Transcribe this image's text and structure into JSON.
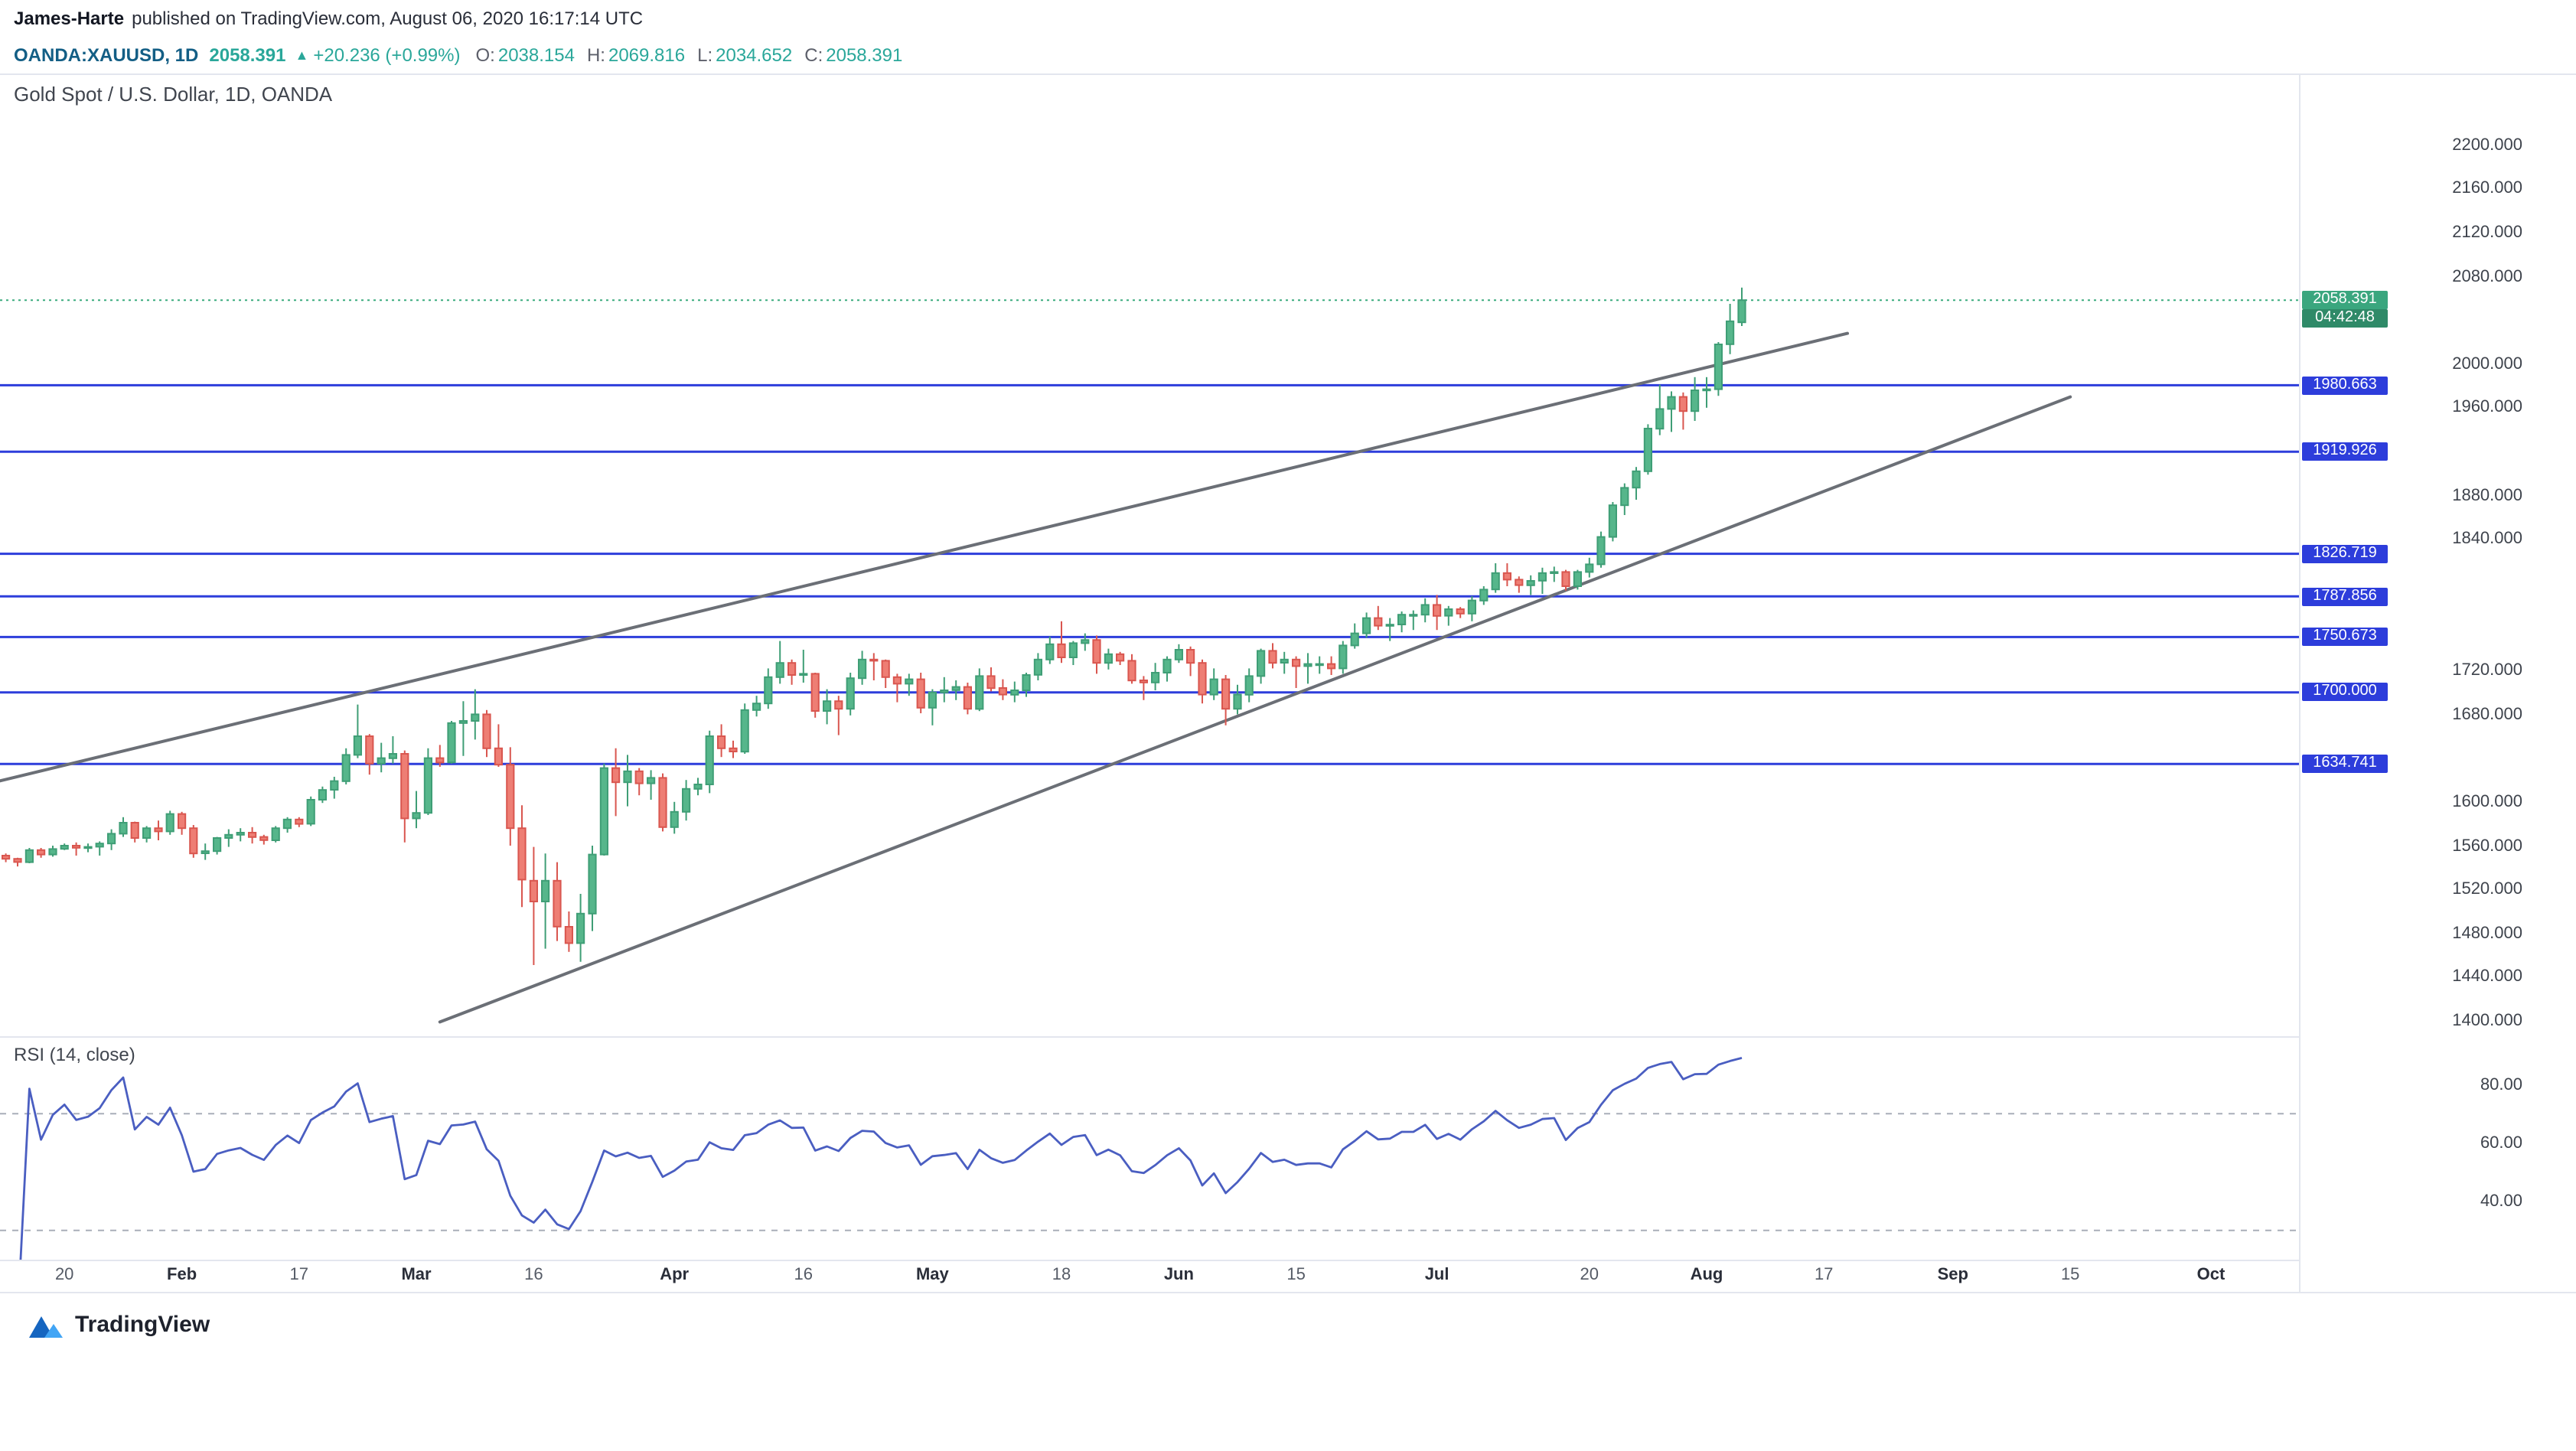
{
  "header": {
    "publisher": "James-Harte",
    "published_text": "published on TradingView.com, August 06, 2020 16:17:14 UTC",
    "symbol": "OANDA:XAUUSD, 1D",
    "last_price": "2058.391",
    "change_icon": "▲",
    "change_text": "+20.236 (+0.99%)",
    "ohlc": [
      {
        "label": "O:",
        "value": "2038.154"
      },
      {
        "label": "H:",
        "value": "2069.816"
      },
      {
        "label": "L:",
        "value": "2034.652"
      },
      {
        "label": "C:",
        "value": "2058.391"
      }
    ]
  },
  "footer": {
    "brand": "TradingView"
  },
  "colors": {
    "up": "#56b68b",
    "up_border": "#3f9e76",
    "down": "#ee7e74",
    "down_border": "#d9564f",
    "sr_line": "#2d3ddb",
    "sr_label_bg": "#2d3ddb",
    "last_line": "#3bab7e",
    "last_label_bg": "#3aa67e",
    "countdown_bg": "#2f8a68",
    "trend": "#6b6f76",
    "rsi_line": "#4a5ec1",
    "rsi_band": "#a9aeb9",
    "header_symbol": "#135e85",
    "header_value": "#2aa79a",
    "ohlc_label": "#5d606b"
  },
  "chart_data": {
    "type": "candlestick",
    "title": "Gold Spot / U.S. Dollar, 1D, OANDA",
    "symbol": "XAUUSD",
    "interval": "1D",
    "price_axis": {
      "min": 1386,
      "max": 2264,
      "tick_min": 1400,
      "tick_max": 2200,
      "tick_step": 40
    },
    "time_axis": {
      "total_slots": 196,
      "labels": [
        {
          "text": "20",
          "slot": 5
        },
        {
          "text": "Feb",
          "slot": 15,
          "month": true
        },
        {
          "text": "17",
          "slot": 25
        },
        {
          "text": "Mar",
          "slot": 35,
          "month": true
        },
        {
          "text": "16",
          "slot": 45
        },
        {
          "text": "Apr",
          "slot": 57,
          "month": true
        },
        {
          "text": "16",
          "slot": 68
        },
        {
          "text": "May",
          "slot": 79,
          "month": true
        },
        {
          "text": "18",
          "slot": 90
        },
        {
          "text": "Jun",
          "slot": 100,
          "month": true
        },
        {
          "text": "15",
          "slot": 110
        },
        {
          "text": "Jul",
          "slot": 122,
          "month": true
        },
        {
          "text": "20",
          "slot": 135
        },
        {
          "text": "Aug",
          "slot": 145,
          "month": true
        },
        {
          "text": "17",
          "slot": 155
        },
        {
          "text": "Sep",
          "slot": 166,
          "month": true
        },
        {
          "text": "15",
          "slot": 176
        },
        {
          "text": "Oct",
          "slot": 188,
          "month": true
        }
      ]
    },
    "horizontal_lines": [
      1980.663,
      1919.926,
      1826.719,
      1787.856,
      1750.673,
      1700.0,
      1634.741
    ],
    "last_price": 2058.391,
    "countdown": "04:42:48",
    "trend_lines": [
      {
        "from_slot": -1,
        "from_price": 1618,
        "to_slot": 157,
        "to_price": 2028
      },
      {
        "from_slot": 37,
        "from_price": 1399,
        "to_slot": 176,
        "to_price": 1970
      }
    ],
    "candles": [
      [
        1551,
        1553,
        1545,
        1548
      ],
      [
        1548,
        1549,
        1541,
        1545
      ],
      [
        1545,
        1558,
        1544,
        1556
      ],
      [
        1556,
        1558,
        1549,
        1552
      ],
      [
        1552,
        1560,
        1550,
        1557
      ],
      [
        1557,
        1562,
        1556,
        1560
      ],
      [
        1560,
        1563,
        1551,
        1558
      ],
      [
        1558,
        1562,
        1554,
        1559
      ],
      [
        1559,
        1564,
        1551,
        1562
      ],
      [
        1562,
        1575,
        1556,
        1571
      ],
      [
        1571,
        1586,
        1568,
        1581
      ],
      [
        1581,
        1582,
        1563,
        1567
      ],
      [
        1567,
        1578,
        1563,
        1576
      ],
      [
        1576,
        1583,
        1565,
        1573
      ],
      [
        1573,
        1592,
        1570,
        1589
      ],
      [
        1589,
        1591,
        1570,
        1576
      ],
      [
        1576,
        1579,
        1549,
        1553
      ],
      [
        1553,
        1562,
        1547,
        1555
      ],
      [
        1555,
        1568,
        1552,
        1567
      ],
      [
        1567,
        1575,
        1559,
        1570
      ],
      [
        1570,
        1576,
        1564,
        1572
      ],
      [
        1572,
        1577,
        1562,
        1568
      ],
      [
        1568,
        1570,
        1561,
        1565
      ],
      [
        1565,
        1578,
        1563,
        1576
      ],
      [
        1576,
        1586,
        1572,
        1584
      ],
      [
        1584,
        1586,
        1577,
        1580
      ],
      [
        1580,
        1605,
        1578,
        1602
      ],
      [
        1602,
        1614,
        1599,
        1611
      ],
      [
        1611,
        1623,
        1603,
        1619
      ],
      [
        1619,
        1649,
        1616,
        1643
      ],
      [
        1643,
        1689,
        1640,
        1660
      ],
      [
        1660,
        1662,
        1625,
        1635
      ],
      [
        1635,
        1654,
        1627,
        1640
      ],
      [
        1640,
        1660,
        1635,
        1644
      ],
      [
        1644,
        1647,
        1563,
        1585
      ],
      [
        1585,
        1610,
        1576,
        1590
      ],
      [
        1590,
        1649,
        1588,
        1640
      ],
      [
        1640,
        1652,
        1632,
        1636
      ],
      [
        1636,
        1674,
        1635,
        1672
      ],
      [
        1672,
        1692,
        1642,
        1674
      ],
      [
        1674,
        1703,
        1657,
        1680
      ],
      [
        1680,
        1684,
        1641,
        1649
      ],
      [
        1649,
        1671,
        1632,
        1634
      ],
      [
        1634,
        1650,
        1560,
        1576
      ],
      [
        1576,
        1597,
        1504,
        1529
      ],
      [
        1528,
        1559,
        1451,
        1509
      ],
      [
        1509,
        1553,
        1466,
        1528
      ],
      [
        1528,
        1545,
        1473,
        1486
      ],
      [
        1486,
        1500,
        1463,
        1471
      ],
      [
        1471,
        1516,
        1454,
        1498
      ],
      [
        1498,
        1560,
        1482,
        1552
      ],
      [
        1552,
        1635,
        1551,
        1631
      ],
      [
        1631,
        1649,
        1587,
        1618
      ],
      [
        1618,
        1643,
        1596,
        1628
      ],
      [
        1628,
        1631,
        1606,
        1617
      ],
      [
        1617,
        1629,
        1602,
        1622
      ],
      [
        1622,
        1626,
        1573,
        1577
      ],
      [
        1577,
        1600,
        1571,
        1591
      ],
      [
        1591,
        1620,
        1583,
        1612
      ],
      [
        1612,
        1622,
        1606,
        1616
      ],
      [
        1616,
        1665,
        1608,
        1660
      ],
      [
        1660,
        1671,
        1641,
        1649
      ],
      [
        1649,
        1656,
        1640,
        1646
      ],
      [
        1646,
        1690,
        1644,
        1684
      ],
      [
        1684,
        1697,
        1678,
        1690
      ],
      [
        1690,
        1722,
        1685,
        1714
      ],
      [
        1714,
        1747,
        1708,
        1727
      ],
      [
        1727,
        1730,
        1707,
        1716
      ],
      [
        1716,
        1739,
        1709,
        1717
      ],
      [
        1717,
        1718,
        1677,
        1683
      ],
      [
        1683,
        1703,
        1671,
        1692
      ],
      [
        1692,
        1697,
        1661,
        1685
      ],
      [
        1685,
        1718,
        1679,
        1713
      ],
      [
        1713,
        1738,
        1707,
        1730
      ],
      [
        1730,
        1736,
        1711,
        1729
      ],
      [
        1729,
        1730,
        1704,
        1714
      ],
      [
        1714,
        1717,
        1691,
        1708
      ],
      [
        1708,
        1717,
        1697,
        1712
      ],
      [
        1712,
        1718,
        1681,
        1686
      ],
      [
        1686,
        1703,
        1670,
        1700
      ],
      [
        1700,
        1714,
        1691,
        1702
      ],
      [
        1702,
        1711,
        1693,
        1705
      ],
      [
        1705,
        1709,
        1680,
        1685
      ],
      [
        1685,
        1722,
        1683,
        1715
      ],
      [
        1715,
        1723,
        1701,
        1704
      ],
      [
        1704,
        1712,
        1693,
        1698
      ],
      [
        1698,
        1710,
        1691,
        1702
      ],
      [
        1702,
        1718,
        1696,
        1716
      ],
      [
        1716,
        1736,
        1711,
        1730
      ],
      [
        1730,
        1751,
        1726,
        1744
      ],
      [
        1744,
        1765,
        1727,
        1732
      ],
      [
        1732,
        1747,
        1725,
        1745
      ],
      [
        1745,
        1754,
        1738,
        1748
      ],
      [
        1748,
        1752,
        1717,
        1727
      ],
      [
        1727,
        1740,
        1721,
        1735
      ],
      [
        1735,
        1737,
        1725,
        1729
      ],
      [
        1729,
        1735,
        1708,
        1711
      ],
      [
        1711,
        1715,
        1693,
        1709
      ],
      [
        1709,
        1727,
        1702,
        1718
      ],
      [
        1718,
        1733,
        1710,
        1730
      ],
      [
        1730,
        1744,
        1727,
        1739
      ],
      [
        1739,
        1742,
        1715,
        1727
      ],
      [
        1727,
        1730,
        1690,
        1698
      ],
      [
        1698,
        1722,
        1693,
        1712
      ],
      [
        1712,
        1716,
        1670,
        1685
      ],
      [
        1685,
        1707,
        1680,
        1698
      ],
      [
        1698,
        1722,
        1691,
        1715
      ],
      [
        1715,
        1740,
        1708,
        1738
      ],
      [
        1738,
        1745,
        1722,
        1727
      ],
      [
        1727,
        1737,
        1717,
        1730
      ],
      [
        1730,
        1733,
        1704,
        1724
      ],
      [
        1724,
        1736,
        1708,
        1726
      ],
      [
        1726,
        1733,
        1717,
        1726
      ],
      [
        1726,
        1733,
        1716,
        1722
      ],
      [
        1722,
        1747,
        1717,
        1743
      ],
      [
        1743,
        1763,
        1740,
        1754
      ],
      [
        1754,
        1773,
        1750,
        1768
      ],
      [
        1768,
        1779,
        1757,
        1761
      ],
      [
        1761,
        1768,
        1747,
        1762
      ],
      [
        1762,
        1774,
        1755,
        1771
      ],
      [
        1771,
        1775,
        1757,
        1771
      ],
      [
        1771,
        1786,
        1764,
        1780
      ],
      [
        1780,
        1789,
        1757,
        1770
      ],
      [
        1770,
        1779,
        1761,
        1776
      ],
      [
        1776,
        1778,
        1768,
        1772
      ],
      [
        1772,
        1788,
        1765,
        1784
      ],
      [
        1784,
        1797,
        1780,
        1794
      ],
      [
        1794,
        1818,
        1791,
        1809
      ],
      [
        1809,
        1818,
        1797,
        1803
      ],
      [
        1803,
        1806,
        1791,
        1798
      ],
      [
        1798,
        1807,
        1789,
        1802
      ],
      [
        1802,
        1814,
        1790,
        1809
      ],
      [
        1809,
        1815,
        1801,
        1810
      ],
      [
        1810,
        1812,
        1793,
        1797
      ],
      [
        1797,
        1812,
        1794,
        1810
      ],
      [
        1810,
        1823,
        1805,
        1817
      ],
      [
        1817,
        1847,
        1814,
        1842
      ],
      [
        1842,
        1874,
        1838,
        1871
      ],
      [
        1871,
        1891,
        1862,
        1887
      ],
      [
        1887,
        1906,
        1876,
        1902
      ],
      [
        1902,
        1945,
        1899,
        1941
      ],
      [
        1941,
        1981,
        1935,
        1959
      ],
      [
        1959,
        1975,
        1938,
        1970
      ],
      [
        1970,
        1974,
        1940,
        1957
      ],
      [
        1957,
        1988,
        1948,
        1976
      ],
      [
        1976,
        1988,
        1960,
        1977
      ],
      [
        1977,
        2020,
        1971,
        2018
      ],
      [
        2018,
        2055,
        2009,
        2039
      ],
      [
        2038.154,
        2069.816,
        2034.652,
        2058.391
      ]
    ],
    "rsi": {
      "label": "RSI (14, close)",
      "period": 14,
      "bands": [
        70,
        30
      ],
      "axis": {
        "min": 20,
        "max": 96,
        "ticks": [
          80,
          60,
          40
        ]
      }
    }
  }
}
